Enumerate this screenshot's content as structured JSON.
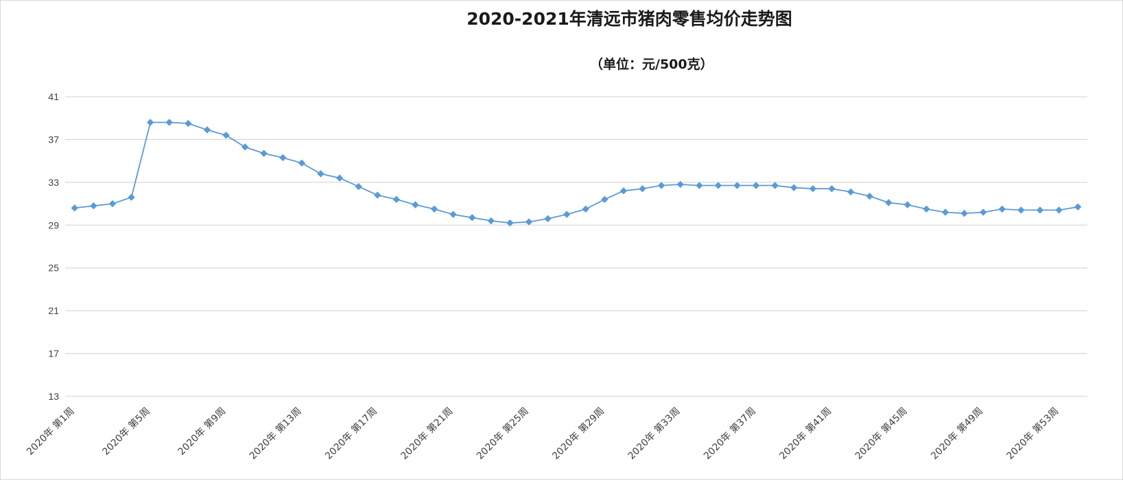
{
  "chart_data": {
    "type": "line",
    "title": "2020-2021年清远市猪肉零售均价走势图",
    "subtitle": "（单位：元/500克）",
    "xlabel": "",
    "ylabel": "",
    "ylim": [
      13,
      41
    ],
    "y_ticks": [
      "41",
      "37",
      "33",
      "29",
      "25",
      "21",
      "17",
      "13"
    ],
    "grid": "horizontal",
    "legend": "none",
    "line_color": "#5b9bd5",
    "x": [
      "2020年 第1周",
      "2020年 第2周",
      "2020年 第3周",
      "2020年 第4周",
      "2020年 第5周",
      "2020年 第6周",
      "2020年 第7周",
      "2020年 第8周",
      "2020年 第9周",
      "2020年 第10周",
      "2020年 第11周",
      "2020年 第12周",
      "2020年 第13周",
      "2020年 第14周",
      "2020年 第15周",
      "2020年 第16周",
      "2020年 第17周",
      "2020年 第18周",
      "2020年 第19周",
      "2020年 第20周",
      "2020年 第21周",
      "2020年 第22周",
      "2020年 第23周",
      "2020年 第24周",
      "2020年 第25周",
      "2020年 第26周",
      "2020年 第27周",
      "2020年 第28周",
      "2020年 第29周",
      "2020年 第30周",
      "2020年 第31周",
      "2020年 第32周",
      "2020年 第33周",
      "2020年 第34周",
      "2020年 第35周",
      "2020年 第36周",
      "2020年 第37周",
      "2020年 第38周",
      "2020年 第39周",
      "2020年 第40周",
      "2020年 第41周",
      "2020年 第42周",
      "2020年 第43周",
      "2020年 第44周",
      "2020年 第45周",
      "2020年 第46周",
      "2020年 第47周",
      "2020年 第48周",
      "2020年 第49周",
      "2020年 第50周",
      "2020年 第51周",
      "2020年 第52周",
      "2020年 第53周",
      "2020年 第54周"
    ],
    "x_tick_labels": [
      "2020年 第1周",
      "2020年 第5周",
      "2020年 第9周",
      "2020年 第13周",
      "2020年 第17周",
      "2020年 第21周",
      "2020年 第25周",
      "2020年 第29周",
      "2020年 第33周",
      "2020年 第37周",
      "2020年 第41周",
      "2020年 第45周",
      "2020年 第49周",
      "2020年 第53周"
    ],
    "x_tick_every": 4,
    "series": [
      {
        "values": [
          30.6,
          30.8,
          31.0,
          31.6,
          38.6,
          38.6,
          38.5,
          37.9,
          37.4,
          36.3,
          35.7,
          35.3,
          34.8,
          33.8,
          33.4,
          32.6,
          31.8,
          31.4,
          30.9,
          30.5,
          30.0,
          29.7,
          29.4,
          29.2,
          29.3,
          29.6,
          30.0,
          30.5,
          31.4,
          32.2,
          32.4,
          32.7,
          32.8,
          32.7,
          32.7,
          32.7,
          32.7,
          32.7,
          32.5,
          32.4,
          32.4,
          32.1,
          31.7,
          31.1,
          30.9,
          30.5,
          30.2,
          30.1,
          30.2,
          30.5,
          30.4,
          30.4,
          30.4,
          30.7
        ]
      }
    ]
  }
}
